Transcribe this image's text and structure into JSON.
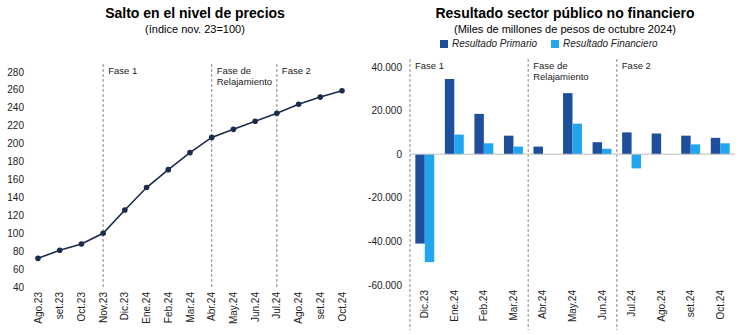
{
  "chart_data": [
    {
      "type": "line",
      "title": "Salto en el nivel de precios",
      "subtitle": "(índice nov. 23=100)",
      "categories": [
        "Ago.23",
        "set.23",
        "Oct.23",
        "Nov.23",
        "Dic.23",
        "Ene.24",
        "Feb.24",
        "Mar.24",
        "Abr.24",
        "May.24",
        "Jun.24",
        "Jul.24",
        "Ago.24",
        "set.24",
        "Oct.24"
      ],
      "values": [
        72,
        81,
        88,
        100,
        126,
        151,
        171,
        190,
        207,
        216,
        225,
        234,
        244,
        252,
        259
      ],
      "color": "#1b2b4b",
      "marker": "circle",
      "ylim": [
        40,
        280
      ],
      "yticks": [
        40,
        60,
        80,
        100,
        120,
        140,
        160,
        180,
        200,
        220,
        240,
        260,
        280
      ],
      "grid": false,
      "annotations": [
        {
          "text": [
            "Fase 1"
          ],
          "category": "Nov.23"
        },
        {
          "text": [
            "Fase de",
            "Relajamiento"
          ],
          "category": "Abr.24"
        },
        {
          "text": [
            "Fase 2"
          ],
          "category": "Jul.24"
        }
      ]
    },
    {
      "type": "bar",
      "title": "Resultado sector público no financiero",
      "subtitle": "(Miles de millones de pesos de octubre 2024)",
      "categories": [
        "Dic.23",
        "Ene.24",
        "Feb.24",
        "Mar.24",
        "Abr.24",
        "May.24",
        "Jun.24",
        "Jul.24",
        "Ago.24",
        "set.24",
        "Oct.24"
      ],
      "series": [
        {
          "name": "Resultado Primario",
          "color": "#1d4f9c",
          "values": [
            -41000,
            34500,
            18500,
            8500,
            3500,
            28000,
            5500,
            10000,
            9500,
            8500,
            7500
          ]
        },
        {
          "name": "Resultado Financiero",
          "color": "#22a5ef",
          "values": [
            -49500,
            9000,
            5000,
            3500,
            0,
            14000,
            2500,
            -6500,
            0,
            4500,
            5000
          ]
        }
      ],
      "ylim": [
        -60000,
        40000
      ],
      "yticks": [
        {
          "value": -60000,
          "label": "-60.000"
        },
        {
          "value": -40000,
          "label": "-40.000"
        },
        {
          "value": -20000,
          "label": "-20.000"
        },
        0,
        {
          "value": 20000,
          "label": "20.000"
        },
        {
          "value": 40000,
          "label": "40.000"
        }
      ],
      "grid": false,
      "legend": "top",
      "annotations": [
        {
          "text": [
            "Fase 1"
          ],
          "category": "Dic.23"
        },
        {
          "text": [
            "Fase de",
            "Relajamiento"
          ],
          "category": "Abr.24"
        },
        {
          "text": [
            "Fase 2"
          ],
          "category": "Jul.24"
        }
      ]
    }
  ]
}
